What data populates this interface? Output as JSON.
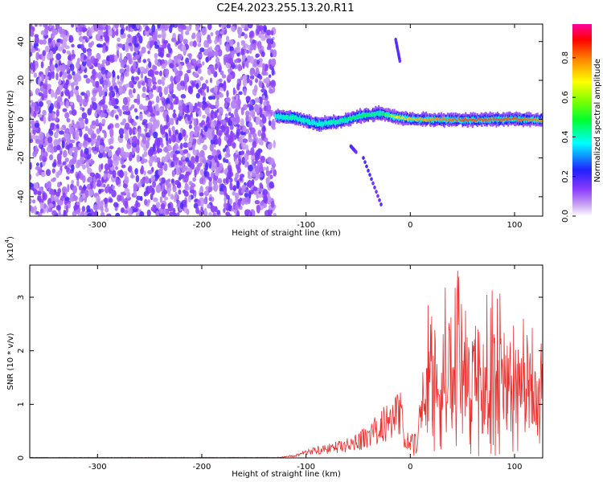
{
  "title": "C2E4.2023.255.13.20.R11",
  "chart_data": [
    {
      "type": "heatmap",
      "xlabel": "Height of straight line (km)",
      "ylabel": "Frequency (Hz)",
      "xlim": [
        -365,
        127
      ],
      "ylim": [
        -50,
        49
      ],
      "xticks": [
        -300,
        -200,
        -100,
        0,
        100
      ],
      "yticks": [
        -40,
        -20,
        0,
        20,
        40
      ],
      "colorbar": {
        "label": "Normalized spectral amplitude",
        "range": [
          0,
          0.97
        ],
        "ticks": [
          0.0,
          0.2,
          0.4,
          0.6,
          0.8
        ],
        "colormap": "rainbow (white-purple-blue-cyan-green-yellow-red-magenta)"
      },
      "features": {
        "noise_region_x": [
          -365,
          -130
        ],
        "main_band": [
          {
            "x": -130,
            "y": 1.5,
            "amplitude": 0.4
          },
          {
            "x": -110,
            "y": 0.5,
            "amplitude": 0.45
          },
          {
            "x": -90,
            "y": -2.5,
            "amplitude": 0.4
          },
          {
            "x": -70,
            "y": -1.5,
            "amplitude": 0.45
          },
          {
            "x": -50,
            "y": 1.5,
            "amplitude": 0.5
          },
          {
            "x": -30,
            "y": 3.0,
            "amplitude": 0.45
          },
          {
            "x": -15,
            "y": 1.0,
            "amplitude": 0.7
          },
          {
            "x": 0,
            "y": 0.0,
            "amplitude": 0.75
          },
          {
            "x": 50,
            "y": -0.5,
            "amplitude": 0.85
          },
          {
            "x": 100,
            "y": 0.0,
            "amplitude": 0.85
          },
          {
            "x": 127,
            "y": -0.5,
            "amplitude": 0.8
          }
        ],
        "streaks": [
          {
            "x": [
              -14,
              -10
            ],
            "y": [
              41,
              30
            ]
          },
          {
            "x": [
              -57,
              -52
            ],
            "y": [
              -14,
              -17
            ]
          },
          {
            "x": [
              -45,
              -28
            ],
            "y": [
              -20,
              -44
            ]
          }
        ]
      }
    },
    {
      "type": "line",
      "xlabel": "Height of straight line (km)",
      "ylabel": "SNR (10 * v/v)",
      "multiplier": "(x10^4)",
      "multiplier_base": "(x10",
      "multiplier_exp": "4",
      "multiplier_close": ")",
      "xlim": [
        -365,
        127
      ],
      "ylim": [
        0,
        3.6
      ],
      "xticks": [
        -300,
        -200,
        -100,
        0,
        100
      ],
      "yticks": [
        0,
        1,
        2,
        3
      ],
      "color": "#e8312d",
      "series": [
        {
          "x": [
            -365,
            -300,
            -200,
            -130,
            -110,
            -100,
            -80,
            -60,
            -40,
            -30,
            -20,
            -15,
            -10,
            -5,
            0,
            5,
            10,
            15,
            20,
            30,
            40,
            50,
            60,
            70,
            80,
            90,
            100,
            110,
            120,
            127
          ],
          "y": [
            0.005,
            0.005,
            0.005,
            0.005,
            0.05,
            0.15,
            0.2,
            0.3,
            0.5,
            0.7,
            0.9,
            1.0,
            1.1,
            0.4,
            0.05,
            0.3,
            1.2,
            1.6,
            1.8,
            2.0,
            2.2,
            2.2,
            1.9,
            1.8,
            1.8,
            1.9,
            1.7,
            1.5,
            1.4,
            1.6
          ]
        }
      ]
    }
  ]
}
